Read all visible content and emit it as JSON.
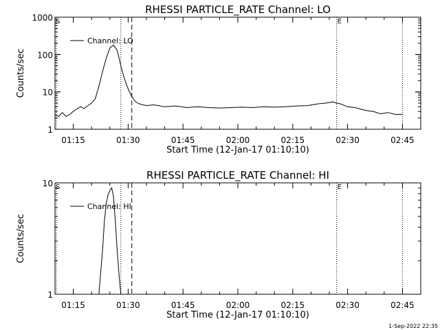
{
  "footer": {
    "date": "1-Sep-2022 22:35"
  },
  "chart_data": [
    {
      "type": "line",
      "title": "RHESSI PARTICLE_RATE Channel: LO",
      "xlabel": "Start Time (12-Jan-17 01:10:10)",
      "ylabel": "Counts/sec",
      "yscale": "log",
      "xlim": [
        "01:10",
        "02:50"
      ],
      "ylim": [
        1,
        1000
      ],
      "xticks": [
        "01:15",
        "01:30",
        "01:45",
        "02:00",
        "02:15",
        "02:30",
        "02:45"
      ],
      "yticks": [
        "1",
        "10",
        "100",
        "1000"
      ],
      "legend": "Channel: LO",
      "markers": [
        "S",
        "E"
      ],
      "dotted_lines": [
        "01:28",
        "02:27",
        "02:45"
      ],
      "dashed_lines": [
        "01:31"
      ],
      "grid": false,
      "series": [
        {
          "name": "Channel: LO",
          "x": [
            "01:10",
            "01:11",
            "01:12",
            "01:13",
            "01:14",
            "01:15",
            "01:16",
            "01:17",
            "01:18",
            "01:19",
            "01:20",
            "01:21",
            "01:22",
            "01:23",
            "01:24",
            "01:25",
            "01:26",
            "01:27",
            "01:28",
            "01:29",
            "01:30",
            "01:31",
            "01:32",
            "01:33",
            "01:35",
            "01:37",
            "01:40",
            "01:43",
            "01:46",
            "01:49",
            "01:52",
            "01:55",
            "01:58",
            "02:01",
            "02:04",
            "02:07",
            "02:10",
            "02:13",
            "02:16",
            "02:19",
            "02:22",
            "02:24",
            "02:26",
            "02:27",
            "02:28",
            "02:30",
            "02:32",
            "02:35",
            "02:37",
            "02:39",
            "02:41",
            "02:43",
            "02:45"
          ],
          "y": [
            2.5,
            2.2,
            2.8,
            2.2,
            2.5,
            3.0,
            3.5,
            4.0,
            3.6,
            4.3,
            5.0,
            6.5,
            14,
            35,
            80,
            150,
            180,
            130,
            50,
            22,
            12,
            7.5,
            5.5,
            4.8,
            4.3,
            4.5,
            4.0,
            4.2,
            3.8,
            4.0,
            3.8,
            3.7,
            3.8,
            3.9,
            3.8,
            4.0,
            3.9,
            4.0,
            4.2,
            4.3,
            4.8,
            5.0,
            5.4,
            5.0,
            4.8,
            4.0,
            3.8,
            3.2,
            3.0,
            2.6,
            2.8,
            2.5,
            2.5
          ]
        }
      ]
    },
    {
      "type": "line",
      "title": "RHESSI PARTICLE_RATE Channel: HI",
      "xlabel": "Start Time (12-Jan-17 01:10:10)",
      "ylabel": "Counts/sec",
      "yscale": "log",
      "xlim": [
        "01:10",
        "02:50"
      ],
      "ylim": [
        1,
        10
      ],
      "xticks": [
        "01:15",
        "01:30",
        "01:45",
        "02:00",
        "02:15",
        "02:30",
        "02:45"
      ],
      "yticks": [
        "1",
        "10"
      ],
      "legend": "Channel: HI",
      "markers": [
        "S",
        "E"
      ],
      "dotted_lines": [
        "01:28",
        "02:27",
        "02:45"
      ],
      "dashed_lines": [
        "01:31"
      ],
      "grid": false,
      "series": [
        {
          "name": "Channel: HI",
          "x": [
            "01:22",
            "01:23",
            "01:23:30",
            "01:24",
            "01:24:30",
            "01:25",
            "01:25:30",
            "01:26",
            "01:26:30",
            "01:27",
            "01:27:30",
            "01:28"
          ],
          "y": [
            1.0,
            2.5,
            4.5,
            6.5,
            7.8,
            8.5,
            9.0,
            7.5,
            4.5,
            2.5,
            1.5,
            1.0
          ]
        }
      ]
    }
  ]
}
